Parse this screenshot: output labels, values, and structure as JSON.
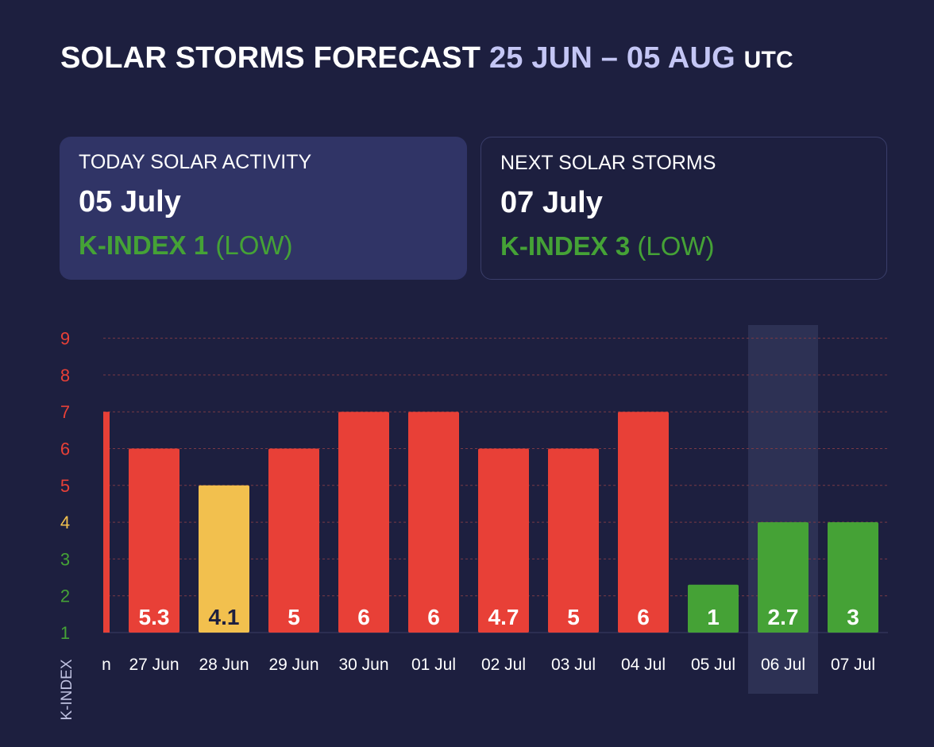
{
  "header": {
    "title_main": "SOLAR STORMS FORECAST",
    "title_range": "25 JUN – 05 AUG",
    "title_tz": "UTC"
  },
  "cards": {
    "today": {
      "label": "TODAY SOLAR ACTIVITY",
      "date": "05 July",
      "kindex_label": "K-INDEX 1",
      "level": "(LOW)"
    },
    "next": {
      "label": "NEXT SOLAR STORMS",
      "date": "07 July",
      "kindex_label": "K-INDEX 3",
      "level": "(LOW)"
    }
  },
  "colors": {
    "high": "#e84037",
    "moderate": "#f2c04e",
    "low": "#45a236",
    "background": "#1d1f3f",
    "card": "#303466",
    "highlight": "#2d3154"
  },
  "chart_data": {
    "type": "bar",
    "ylabel": "K-INDEX",
    "ylim": [
      1,
      9
    ],
    "yticks": [
      1,
      2,
      3,
      4,
      5,
      6,
      7,
      8,
      9
    ],
    "ytick_colors": {
      "1": "#45a236",
      "2": "#45a236",
      "3": "#45a236",
      "4": "#f2c04e",
      "5": "#e84037",
      "6": "#e84037",
      "7": "#e84037",
      "8": "#e84037",
      "9": "#e84037"
    },
    "grid": true,
    "partial_first_bar": {
      "label": "n",
      "bar_height_value": 6
    },
    "categories": [
      "27 Jun",
      "28 Jun",
      "29 Jun",
      "30 Jun",
      "01 Jul",
      "02 Jul",
      "03 Jul",
      "04 Jul",
      "05 Jul",
      "06 Jul",
      "07 Jul"
    ],
    "bar_height_values": [
      5,
      4,
      5,
      6,
      6,
      5,
      5,
      6,
      1.3,
      3,
      3
    ],
    "data_labels": [
      "5.3",
      "4.1",
      "5",
      "6",
      "6",
      "4.7",
      "5",
      "6",
      "1",
      "2.7",
      "3"
    ],
    "bar_colors": [
      "#e84037",
      "#f2c04e",
      "#e84037",
      "#e84037",
      "#e84037",
      "#e84037",
      "#e84037",
      "#e84037",
      "#45a236",
      "#45a236",
      "#45a236"
    ],
    "label_colors": [
      "#ffffff",
      "#1d1f3f",
      "#ffffff",
      "#ffffff",
      "#ffffff",
      "#ffffff",
      "#ffffff",
      "#ffffff",
      "#ffffff",
      "#ffffff",
      "#ffffff"
    ],
    "highlighted_category": "06 Jul"
  }
}
